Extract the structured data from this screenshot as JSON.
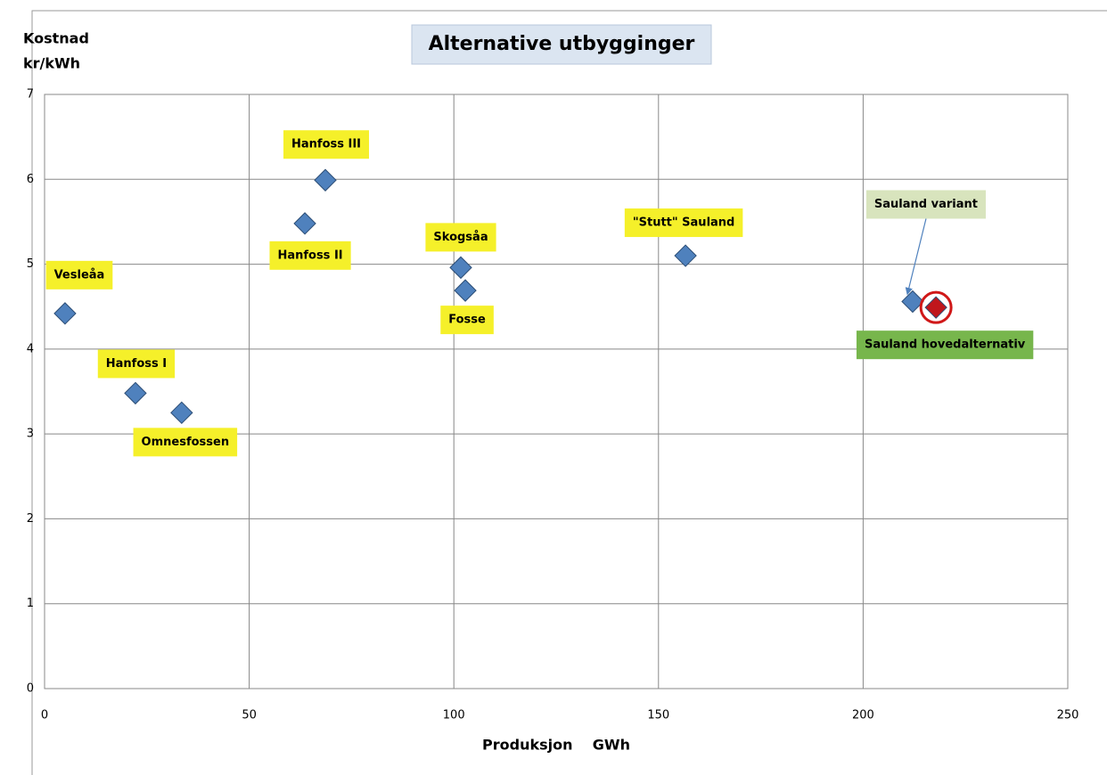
{
  "chart_data": {
    "type": "scatter",
    "title": "Alternative utbygginger",
    "ylabel": [
      "Kostnad",
      "kr/kWh"
    ],
    "xlabel": "Produksjon    GWh",
    "x": [
      5,
      22.2,
      33.5,
      63.6,
      68.6,
      101.7,
      102.8,
      156.6,
      212.1,
      217.8
    ],
    "values": [
      4.42,
      3.48,
      3.25,
      5.48,
      5.99,
      4.96,
      4.69,
      5.1,
      4.56,
      4.49
    ],
    "point_labels": [
      "Vesleåa",
      "Hanfoss I",
      "Omnesfossen",
      "Hanfoss II",
      "Hanfoss III",
      "Skogsåa",
      "Fosse",
      "\"Stutt\" Sauland",
      "Sauland variant",
      "Sauland hovedalternativ"
    ],
    "colors": [
      "#4f81bd",
      "#4f81bd",
      "#4f81bd",
      "#4f81bd",
      "#4f81bd",
      "#4f81bd",
      "#4f81bd",
      "#4f81bd",
      "#4f81bd",
      "#c0161c"
    ],
    "label_colors": [
      "#f5f02a",
      "#f5f02a",
      "#f5f02a",
      "#f5f02a",
      "#f5f02a",
      "#f5f02a",
      "#f5f02a",
      "#f5f02a",
      "#d8e4bd",
      "#77b64c"
    ],
    "xlim": [
      0,
      250
    ],
    "xticks": [
      0,
      50,
      100,
      150,
      200,
      250
    ],
    "ylim": [
      0,
      7
    ],
    "yticks": [
      0,
      1,
      2,
      3,
      4,
      5,
      6,
      7
    ],
    "grid": true
  }
}
